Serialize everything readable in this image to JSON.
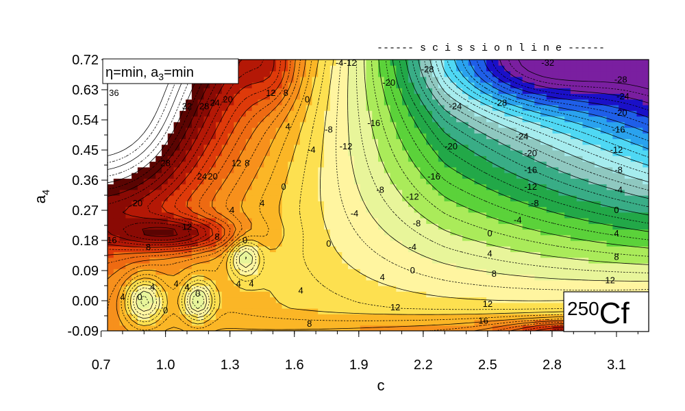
{
  "chart_data": {
    "type": "heatmap",
    "subtype": "filled-contour",
    "xlabel": "c",
    "ylabel": "a",
    "ylabel_subscript": "4",
    "xlim": [
      0.73,
      3.25
    ],
    "ylim": [
      -0.09,
      0.72
    ],
    "xticks": [
      "0.7",
      "1.0",
      "1.3",
      "1.6",
      "1.9",
      "2.2",
      "2.5",
      "2.8",
      "3.1"
    ],
    "yticks": [
      "0.72",
      "0.63",
      "0.54",
      "0.45",
      "0.36",
      "0.27",
      "0.18",
      "0.09",
      "0.00",
      "-0.09"
    ],
    "constraint_label": {
      "eta": "η",
      "eta_text": "=min, a",
      "a3_sub": "3",
      "a3_text": "=min"
    },
    "nucleus": {
      "mass": "250",
      "symbol": "Cf"
    },
    "scission_label": "------ s c i s s i o n   l i n e ------",
    "colorscale": [
      {
        "level": -32,
        "color": "#7a1fa0"
      },
      {
        "level": -28,
        "color": "#1a10c8"
      },
      {
        "level": -24,
        "color": "#1f5fe8"
      },
      {
        "level": -20,
        "color": "#2aa2ee"
      },
      {
        "level": -16,
        "color": "#4fd8f4"
      },
      {
        "level": -12,
        "color": "#a6ecee"
      },
      {
        "level": -8,
        "color": "#8fc8c0"
      },
      {
        "level": -4,
        "color": "#39ad86"
      },
      {
        "level": 0,
        "color": "#22a848"
      },
      {
        "level": 4,
        "color": "#5bd23a"
      },
      {
        "level": 8,
        "color": "#aaeb5a"
      },
      {
        "level": 12,
        "color": "#e8f59a"
      },
      {
        "level": 16,
        "color": "#fff5a0"
      },
      {
        "level": 20,
        "color": "#fde050"
      },
      {
        "level": 24,
        "color": "#fbb626"
      },
      {
        "level": 28,
        "color": "#f7901c"
      },
      {
        "level": 32,
        "color": "#ee6a12"
      },
      {
        "level": 36,
        "color": "#de3a0a"
      },
      {
        "level": 40,
        "color": "#b41806"
      },
      {
        "level": 44,
        "color": "#8a0a04"
      },
      {
        "level": 48,
        "color": "#5a0402"
      },
      {
        "level": 52,
        "color": "#ffffff"
      }
    ],
    "contour_labels": [
      {
        "text": "36",
        "x": 0.76,
        "y": 0.62
      },
      {
        "text": "32",
        "x": 1.1,
        "y": 0.58
      },
      {
        "text": "28",
        "x": 1.18,
        "y": 0.58
      },
      {
        "text": "24",
        "x": 1.23,
        "y": 0.59
      },
      {
        "text": "20",
        "x": 1.29,
        "y": 0.6
      },
      {
        "text": "28",
        "x": 1.0,
        "y": 0.41
      },
      {
        "text": "24",
        "x": 1.17,
        "y": 0.37
      },
      {
        "text": "20",
        "x": 1.22,
        "y": 0.37
      },
      {
        "text": "20",
        "x": 0.87,
        "y": 0.29
      },
      {
        "text": "12",
        "x": 1.33,
        "y": 0.41
      },
      {
        "text": "8",
        "x": 1.38,
        "y": 0.41
      },
      {
        "text": "12",
        "x": 1.1,
        "y": 0.22
      },
      {
        "text": "16",
        "x": 0.75,
        "y": 0.18
      },
      {
        "text": "8",
        "x": 1.24,
        "y": 0.19
      },
      {
        "text": "8",
        "x": 0.92,
        "y": 0.16
      },
      {
        "text": "4",
        "x": 1.31,
        "y": 0.27
      },
      {
        "text": "4",
        "x": 1.45,
        "y": 0.29
      },
      {
        "text": "0",
        "x": 1.55,
        "y": 0.34
      },
      {
        "text": "4",
        "x": 1.57,
        "y": 0.52
      },
      {
        "text": "0",
        "x": 1.66,
        "y": 0.6
      },
      {
        "text": "8",
        "x": 1.56,
        "y": 0.62
      },
      {
        "text": "12",
        "x": 1.49,
        "y": 0.62
      },
      {
        "text": "0",
        "x": 1.37,
        "y": 0.18
      },
      {
        "text": "-4",
        "x": 1.68,
        "y": 0.45
      },
      {
        "text": "-8",
        "x": 1.76,
        "y": 0.51
      },
      {
        "text": "-4",
        "x": 1.81,
        "y": 0.71
      },
      {
        "text": "-12",
        "x": 1.86,
        "y": 0.71
      },
      {
        "text": "-12",
        "x": 1.84,
        "y": 0.46
      },
      {
        "text": "-16",
        "x": 1.97,
        "y": 0.53
      },
      {
        "text": "-20",
        "x": 2.04,
        "y": 0.65
      },
      {
        "text": "-24",
        "x": 2.35,
        "y": 0.58
      },
      {
        "text": "-28",
        "x": 2.22,
        "y": 0.69
      },
      {
        "text": "-28",
        "x": 2.56,
        "y": 0.59
      },
      {
        "text": "-32",
        "x": 2.78,
        "y": 0.71
      },
      {
        "text": "-28",
        "x": 3.12,
        "y": 0.66
      },
      {
        "text": "-24",
        "x": 3.13,
        "y": 0.61
      },
      {
        "text": "-20",
        "x": 3.12,
        "y": 0.56
      },
      {
        "text": "-16",
        "x": 3.11,
        "y": 0.51
      },
      {
        "text": "-12",
        "x": 3.1,
        "y": 0.45
      },
      {
        "text": "-8",
        "x": 3.11,
        "y": 0.39
      },
      {
        "text": "-4",
        "x": 3.11,
        "y": 0.33
      },
      {
        "text": "0",
        "x": 3.1,
        "y": 0.27
      },
      {
        "text": "4",
        "x": 3.1,
        "y": 0.2
      },
      {
        "text": "8",
        "x": 3.1,
        "y": 0.13
      },
      {
        "text": "12",
        "x": 3.07,
        "y": 0.06
      },
      {
        "text": "-24",
        "x": 2.66,
        "y": 0.49
      },
      {
        "text": "-20",
        "x": 2.33,
        "y": 0.46
      },
      {
        "text": "-20",
        "x": 2.7,
        "y": 0.44
      },
      {
        "text": "-16",
        "x": 2.25,
        "y": 0.37
      },
      {
        "text": "-16",
        "x": 2.7,
        "y": 0.39
      },
      {
        "text": "-12",
        "x": 2.15,
        "y": 0.31
      },
      {
        "text": "-12",
        "x": 2.7,
        "y": 0.34
      },
      {
        "text": "-8",
        "x": 2.0,
        "y": 0.33
      },
      {
        "text": "-8",
        "x": 2.17,
        "y": 0.23
      },
      {
        "text": "-8",
        "x": 2.72,
        "y": 0.29
      },
      {
        "text": "-4",
        "x": 1.88,
        "y": 0.26
      },
      {
        "text": "-4",
        "x": 2.15,
        "y": 0.16
      },
      {
        "text": "-4",
        "x": 2.64,
        "y": 0.24
      },
      {
        "text": "0",
        "x": 1.76,
        "y": 0.17
      },
      {
        "text": "0",
        "x": 2.15,
        "y": 0.09
      },
      {
        "text": "0",
        "x": 2.51,
        "y": 0.2
      },
      {
        "text": "4",
        "x": 2.51,
        "y": 0.14
      },
      {
        "text": "4",
        "x": 2.01,
        "y": 0.07
      },
      {
        "text": "4",
        "x": 1.63,
        "y": 0.03
      },
      {
        "text": "8",
        "x": 2.53,
        "y": 0.08
      },
      {
        "text": "12",
        "x": 2.5,
        "y": -0.01
      },
      {
        "text": "12",
        "x": 2.07,
        "y": -0.02
      },
      {
        "text": "8",
        "x": 1.67,
        "y": -0.07
      },
      {
        "text": "16",
        "x": 2.48,
        "y": -0.06
      },
      {
        "text": "4",
        "x": 1.34,
        "y": 0.05
      },
      {
        "text": "4",
        "x": 1.4,
        "y": 0.05
      },
      {
        "text": "4",
        "x": 1.05,
        "y": 0.05
      },
      {
        "text": "4",
        "x": 1.1,
        "y": 0.04
      },
      {
        "text": "0",
        "x": 1.15,
        "y": 0.02
      },
      {
        "text": "4",
        "x": 0.8,
        "y": 0.01
      },
      {
        "text": "0",
        "x": 0.88,
        "y": 0.01
      },
      {
        "text": "0",
        "x": 1.0,
        "y": -0.03
      },
      {
        "text": "4",
        "x": 0.94,
        "y": 0.04
      }
    ],
    "grid": false,
    "legend": "none"
  }
}
